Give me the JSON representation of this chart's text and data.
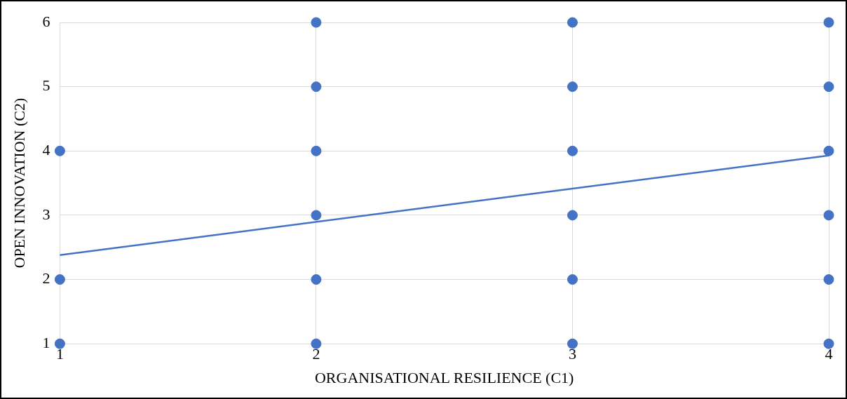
{
  "chart_data": {
    "type": "scatter",
    "xlabel": "ORGANISATIONAL RESILIENCE (C1)",
    "ylabel": "OPEN INNOVATION (C2)",
    "xlim": [
      1,
      4
    ],
    "xticks": [
      1,
      2,
      3,
      4
    ],
    "ylim": [
      1,
      6
    ],
    "yticks": [
      1,
      2,
      3,
      4,
      5,
      6
    ],
    "grid": true,
    "legend": false,
    "series": [
      {
        "marker": "circle",
        "color": "#4472c4",
        "x": [
          1,
          1,
          1,
          2,
          2,
          2,
          2,
          2,
          2,
          3,
          3,
          3,
          3,
          3,
          3,
          4,
          4,
          4,
          4,
          4,
          4
        ],
        "values": [
          4,
          2,
          1,
          6,
          5,
          4,
          3,
          2,
          1,
          6,
          5,
          4,
          3,
          2,
          1,
          6,
          5,
          4,
          3,
          2,
          1
        ]
      },
      {
        "type": "line",
        "marker": "none",
        "color": "#4472c4",
        "x": [
          1,
          4
        ],
        "values": [
          2.38,
          3.93
        ]
      }
    ]
  }
}
